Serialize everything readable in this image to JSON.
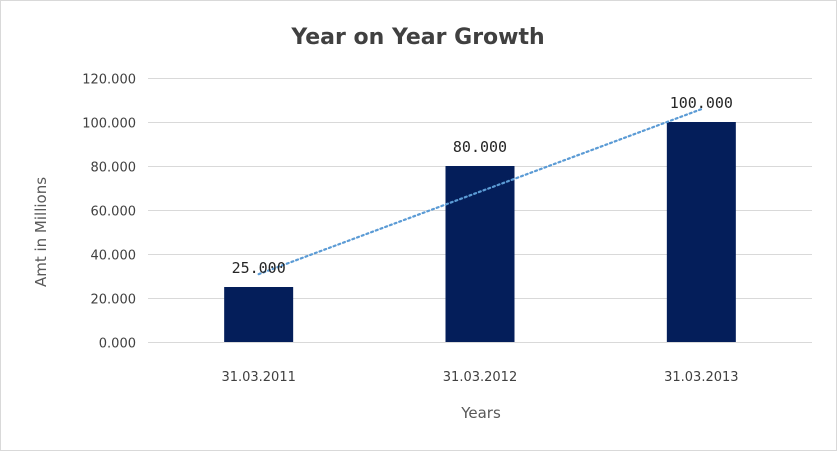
{
  "chart_data": {
    "type": "bar",
    "title": "Year on Year Growth",
    "xlabel": "Years",
    "ylabel": "Amt in Millions",
    "categories": [
      "31.03.2011",
      "31.03.2012",
      "31.03.2013"
    ],
    "values": [
      25,
      80,
      100
    ],
    "data_labels": [
      "25.000",
      "80.000",
      "100.000"
    ],
    "ylim": [
      0,
      120
    ],
    "y_ticks": [
      0,
      20,
      40,
      60,
      80,
      100,
      120
    ],
    "y_tick_labels": [
      "0.000",
      "20.000",
      "40.000",
      "60.000",
      "80.000",
      "100.000",
      "120.000"
    ],
    "grid": true,
    "legend": "none",
    "bar_color": "#041e5a",
    "gridline_color": "#d9d9d9",
    "trendline": {
      "type": "linear",
      "style": "dotted",
      "color": "#5b9bd5"
    }
  }
}
